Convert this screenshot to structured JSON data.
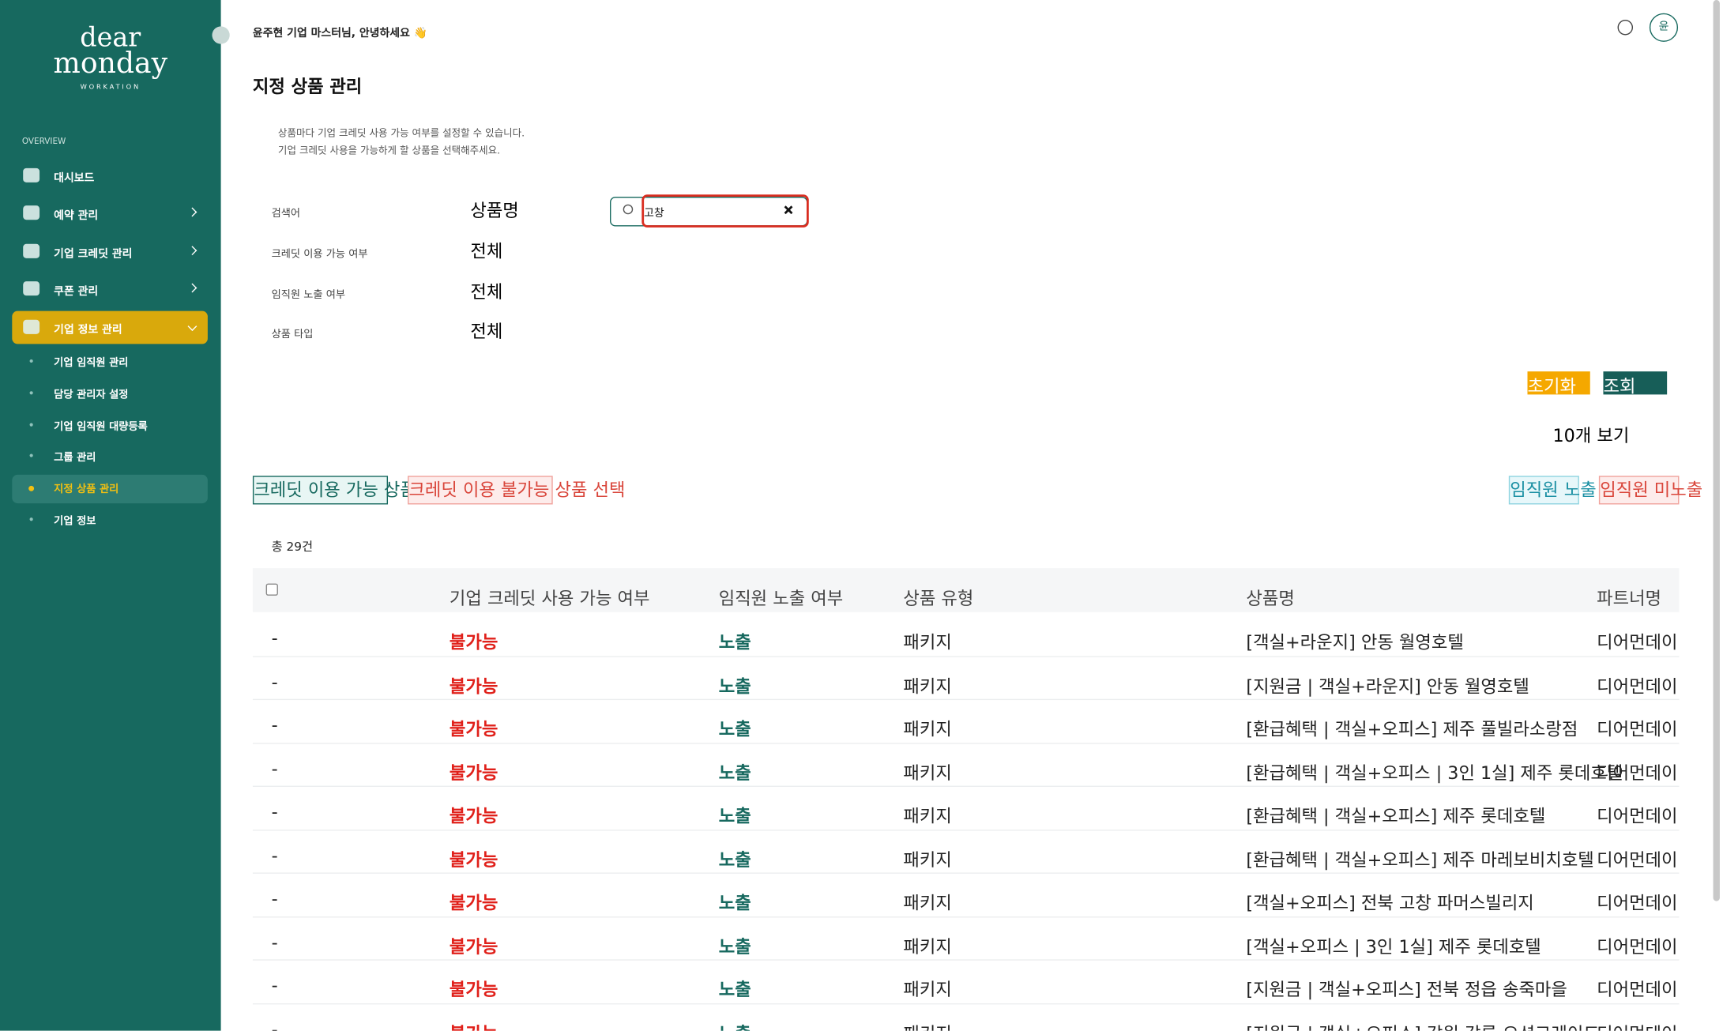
{
  "sidebar": {
    "logo": {
      "line1": "dear",
      "line2": "monday",
      "line3": "WORKATION"
    },
    "section": "OVERVIEW",
    "menu": [
      {
        "label": "대시보드",
        "arrow": false
      },
      {
        "label": "예약 관리",
        "arrow": true
      },
      {
        "label": "기업 크레딧 관리",
        "arrow": true
      },
      {
        "label": "쿠폰 관리",
        "arrow": true
      },
      {
        "label": "기업 정보 관리",
        "arrow": true,
        "active": true
      }
    ],
    "submenu": [
      {
        "label": "기업 임직원 관리"
      },
      {
        "label": "담당 관리자 설정"
      },
      {
        "label": "기업 임직원 대량등록"
      },
      {
        "label": "그룹 관리"
      },
      {
        "label": "지정 상품 관리",
        "active": true
      },
      {
        "label": "기업 정보"
      }
    ]
  },
  "header": {
    "greeting": "윤주현 기업 마스터님, 안녕하세요 👋",
    "avatar": "윤"
  },
  "page": {
    "title": "지정 상품 관리",
    "description": [
      "상품마다 기업 크레딧 사용 가능 여부를 설정할 수 있습니다.",
      "기업 크레딧 사용을 가능하게 할 상품을 선택해주세요."
    ]
  },
  "filters": [
    {
      "label": "검색어",
      "select": "상품명"
    },
    {
      "label": "크레딧 이용 가능 여부",
      "select": "전체"
    },
    {
      "label": "임직원 노출 여부",
      "select": "전체"
    },
    {
      "label": "상품 타입",
      "select": "전체"
    }
  ],
  "search": {
    "value": "고창"
  },
  "buttons": {
    "reset": "초기화",
    "search": "조회",
    "page_size": "10개 보기",
    "credit_on": "크레딧 이용 가능 상품 선택",
    "credit_off": "크레딧 이용 불가능 상품 선택",
    "expose": "임직원 노출",
    "hide": "임직원 미노출"
  },
  "table": {
    "total": "총 29건",
    "columns": [
      "기업 크레딧 사용 가능 여부",
      "임직원 노출 여부",
      "상품 유형",
      "상품명",
      "파트너명"
    ],
    "rows": [
      [
        "-",
        "불가능",
        "노출",
        "패키지",
        "[객실+라운지] 안동 월영호텔",
        "디어먼데이"
      ],
      [
        "-",
        "불가능",
        "노출",
        "패키지",
        "[지원금 | 객실+라운지] 안동 월영호텔",
        "디어먼데이"
      ],
      [
        "-",
        "불가능",
        "노출",
        "패키지",
        "[환급혜택 | 객실+오피스] 제주 풀빌라소랑점",
        "디어먼데이"
      ],
      [
        "-",
        "불가능",
        "노출",
        "패키지",
        "[환급혜택 | 객실+오피스 | 3인 1실] 제주 롯데호텔",
        "디어먼데이"
      ],
      [
        "-",
        "불가능",
        "노출",
        "패키지",
        "[환급혜택 | 객실+오피스] 제주 롯데호텔",
        "디어먼데이"
      ],
      [
        "-",
        "불가능",
        "노출",
        "패키지",
        "[환급혜택 | 객실+오피스] 제주 마레보비치호텔",
        "디어먼데이"
      ],
      [
        "-",
        "불가능",
        "노출",
        "패키지",
        "[객실+오피스] 전북 고창 파머스빌리지",
        "디어먼데이"
      ],
      [
        "-",
        "불가능",
        "노출",
        "패키지",
        "[객실+오피스 | 3인 1실] 제주 롯데호텔",
        "디어먼데이"
      ],
      [
        "-",
        "불가능",
        "노출",
        "패키지",
        "[지원금 | 객실+오피스] 전북 정읍 송죽마을",
        "디어먼데이"
      ],
      [
        "-",
        "불가능",
        "노출",
        "패키지",
        "[지원금 | 객실+오피스] 강원 강릉 오션그레이드",
        "디어먼데이"
      ]
    ]
  }
}
